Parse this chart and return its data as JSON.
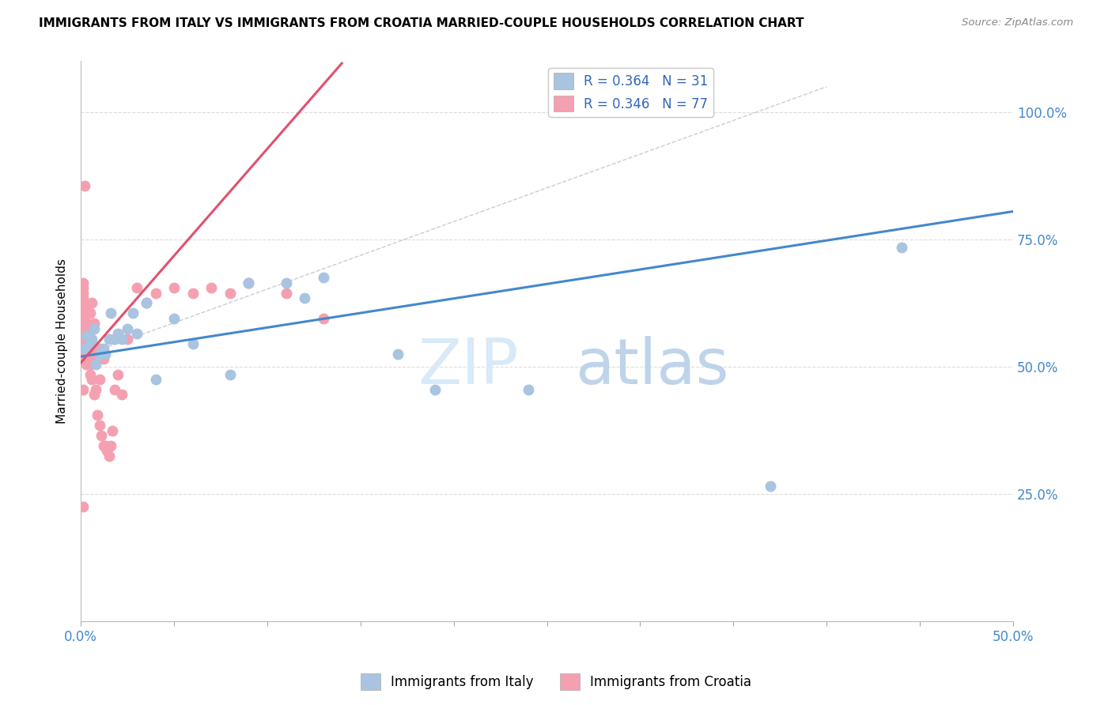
{
  "title": "IMMIGRANTS FROM ITALY VS IMMIGRANTS FROM CROATIA MARRIED-COUPLE HOUSEHOLDS CORRELATION CHART",
  "source": "Source: ZipAtlas.com",
  "ylabel": "Married-couple Households",
  "legend_italy": "R = 0.364   N = 31",
  "legend_croatia": "R = 0.346   N = 77",
  "legend_bottom_italy": "Immigrants from Italy",
  "legend_bottom_croatia": "Immigrants from Croatia",
  "italy_color": "#a8c4e0",
  "croatia_color": "#f4a0b0",
  "italy_line_color": "#4488cc",
  "croatia_line_color": "#e05070",
  "xlim": [
    0.0,
    0.5
  ],
  "ylim": [
    0.0,
    1.1
  ],
  "italy_scatter_x": [
    0.002,
    0.003,
    0.005,
    0.006,
    0.007,
    0.008,
    0.01,
    0.012,
    0.013,
    0.015,
    0.016,
    0.018,
    0.02,
    0.022,
    0.025,
    0.028,
    0.03,
    0.035,
    0.04,
    0.05,
    0.06,
    0.08,
    0.09,
    0.11,
    0.12,
    0.13,
    0.17,
    0.19,
    0.24,
    0.37,
    0.44
  ],
  "italy_scatter_y": [
    0.535,
    0.56,
    0.545,
    0.555,
    0.575,
    0.505,
    0.525,
    0.535,
    0.525,
    0.555,
    0.605,
    0.555,
    0.565,
    0.555,
    0.575,
    0.605,
    0.565,
    0.625,
    0.475,
    0.595,
    0.545,
    0.485,
    0.665,
    0.665,
    0.635,
    0.675,
    0.525,
    0.455,
    0.455,
    0.265,
    0.735
  ],
  "croatia_scatter_x": [
    0.001,
    0.001,
    0.001,
    0.001,
    0.001,
    0.001,
    0.001,
    0.001,
    0.001,
    0.001,
    0.001,
    0.001,
    0.001,
    0.001,
    0.001,
    0.002,
    0.002,
    0.002,
    0.002,
    0.002,
    0.002,
    0.002,
    0.002,
    0.002,
    0.002,
    0.003,
    0.003,
    0.003,
    0.003,
    0.003,
    0.003,
    0.003,
    0.003,
    0.004,
    0.004,
    0.004,
    0.004,
    0.004,
    0.005,
    0.005,
    0.005,
    0.005,
    0.005,
    0.006,
    0.006,
    0.007,
    0.007,
    0.007,
    0.008,
    0.009,
    0.01,
    0.01,
    0.01,
    0.011,
    0.012,
    0.012,
    0.013,
    0.014,
    0.015,
    0.016,
    0.017,
    0.018,
    0.02,
    0.022,
    0.025,
    0.03,
    0.035,
    0.04,
    0.05,
    0.06,
    0.07,
    0.08,
    0.09,
    0.11,
    0.13,
    0.001,
    0.001
  ],
  "croatia_scatter_y": [
    0.535,
    0.545,
    0.555,
    0.565,
    0.575,
    0.585,
    0.595,
    0.605,
    0.615,
    0.625,
    0.635,
    0.645,
    0.655,
    0.665,
    0.545,
    0.525,
    0.535,
    0.555,
    0.565,
    0.575,
    0.585,
    0.595,
    0.605,
    0.615,
    0.855,
    0.505,
    0.515,
    0.535,
    0.545,
    0.555,
    0.565,
    0.575,
    0.615,
    0.505,
    0.515,
    0.525,
    0.545,
    0.575,
    0.485,
    0.505,
    0.525,
    0.545,
    0.605,
    0.475,
    0.625,
    0.445,
    0.585,
    0.525,
    0.455,
    0.405,
    0.385,
    0.475,
    0.535,
    0.365,
    0.345,
    0.515,
    0.345,
    0.335,
    0.325,
    0.345,
    0.375,
    0.455,
    0.485,
    0.445,
    0.555,
    0.655,
    0.625,
    0.645,
    0.655,
    0.645,
    0.655,
    0.645,
    0.665,
    0.645,
    0.595,
    0.455,
    0.225
  ],
  "watermark_zip": "ZIP",
  "watermark_atlas": "atlas",
  "background_color": "#ffffff",
  "grid_color": "#dddddd"
}
